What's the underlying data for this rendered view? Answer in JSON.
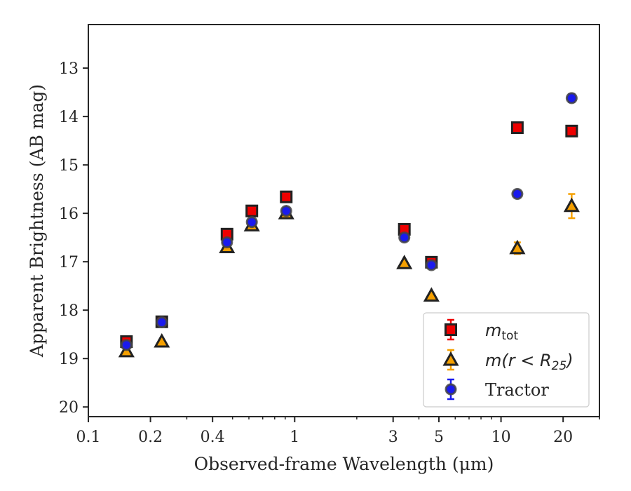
{
  "chart_data": {
    "type": "scatter",
    "title": "",
    "xlabel": "Observed-frame Wavelength (μm)",
    "ylabel": "Apparent Brightness (AB mag)",
    "xscale": "log",
    "xlim": [
      0.1,
      30
    ],
    "ylim": [
      20.2,
      12.1
    ],
    "y_inverted": true,
    "grid": false,
    "legend_position": "lower-right",
    "xticks": [
      {
        "value": 0.1,
        "label": "0.1"
      },
      {
        "value": 0.2,
        "label": "0.2"
      },
      {
        "value": 0.4,
        "label": "0.4"
      },
      {
        "value": 1,
        "label": "1"
      },
      {
        "value": 3,
        "label": "3"
      },
      {
        "value": 5,
        "label": "5"
      },
      {
        "value": 10,
        "label": "10"
      },
      {
        "value": 20,
        "label": "20"
      }
    ],
    "yticks": [
      {
        "value": 13,
        "label": "13"
      },
      {
        "value": 14,
        "label": "14"
      },
      {
        "value": 15,
        "label": "15"
      },
      {
        "value": 16,
        "label": "16"
      },
      {
        "value": 17,
        "label": "17"
      },
      {
        "value": 18,
        "label": "18"
      },
      {
        "value": 19,
        "label": "19"
      },
      {
        "value": 20,
        "label": "20"
      }
    ],
    "series": [
      {
        "key": "mtot",
        "legend_main": "m",
        "legend_sub": "tot",
        "marker": "square",
        "color": "#ee0000",
        "edge_color": "#222222",
        "points": [
          {
            "x": 0.153,
            "y": 18.65,
            "err": 0.05
          },
          {
            "x": 0.227,
            "y": 18.24,
            "err": 0.03
          },
          {
            "x": 0.47,
            "y": 16.43,
            "err": 0.03
          },
          {
            "x": 0.62,
            "y": 15.95,
            "err": 0.03
          },
          {
            "x": 0.91,
            "y": 15.66,
            "err": 0.03
          },
          {
            "x": 3.4,
            "y": 16.33,
            "err": 0.03
          },
          {
            "x": 4.6,
            "y": 17.01,
            "err": 0.03
          },
          {
            "x": 12.0,
            "y": 14.23,
            "err": 0.03
          },
          {
            "x": 22.0,
            "y": 14.3,
            "err": 0.03
          }
        ]
      },
      {
        "key": "mr25",
        "legend_main": "m(r < R",
        "legend_sub": "25",
        "legend_tail": ")",
        "marker": "triangle",
        "color": "#f5a000",
        "edge_color": "#222222",
        "points": [
          {
            "x": 0.153,
            "y": 18.85,
            "err": 0.03
          },
          {
            "x": 0.227,
            "y": 18.65,
            "err": 0.03
          },
          {
            "x": 0.47,
            "y": 16.7,
            "err": 0.03
          },
          {
            "x": 0.62,
            "y": 16.25,
            "err": 0.03
          },
          {
            "x": 0.91,
            "y": 16.0,
            "err": 0.03
          },
          {
            "x": 3.4,
            "y": 17.03,
            "err": 0.03
          },
          {
            "x": 4.6,
            "y": 17.7,
            "err": 0.03
          },
          {
            "x": 12.0,
            "y": 16.72,
            "err": 0.12
          },
          {
            "x": 22.0,
            "y": 15.85,
            "err": 0.25
          }
        ]
      },
      {
        "key": "tractor",
        "legend_main": "Tractor",
        "marker": "circle",
        "color": "#1a1aee",
        "edge_color": "#444444",
        "points": [
          {
            "x": 0.153,
            "y": 18.72,
            "err": 0.03
          },
          {
            "x": 0.227,
            "y": 18.25,
            "err": 0.03
          },
          {
            "x": 0.47,
            "y": 16.6,
            "err": 0.03
          },
          {
            "x": 0.62,
            "y": 16.18,
            "err": 0.03
          },
          {
            "x": 0.91,
            "y": 15.95,
            "err": 0.03
          },
          {
            "x": 3.4,
            "y": 16.5,
            "err": 0.03
          },
          {
            "x": 4.6,
            "y": 17.07,
            "err": 0.03
          },
          {
            "x": 12.0,
            "y": 15.6,
            "err": 0.06
          },
          {
            "x": 22.0,
            "y": 13.62,
            "err": 0.08
          }
        ]
      }
    ]
  }
}
